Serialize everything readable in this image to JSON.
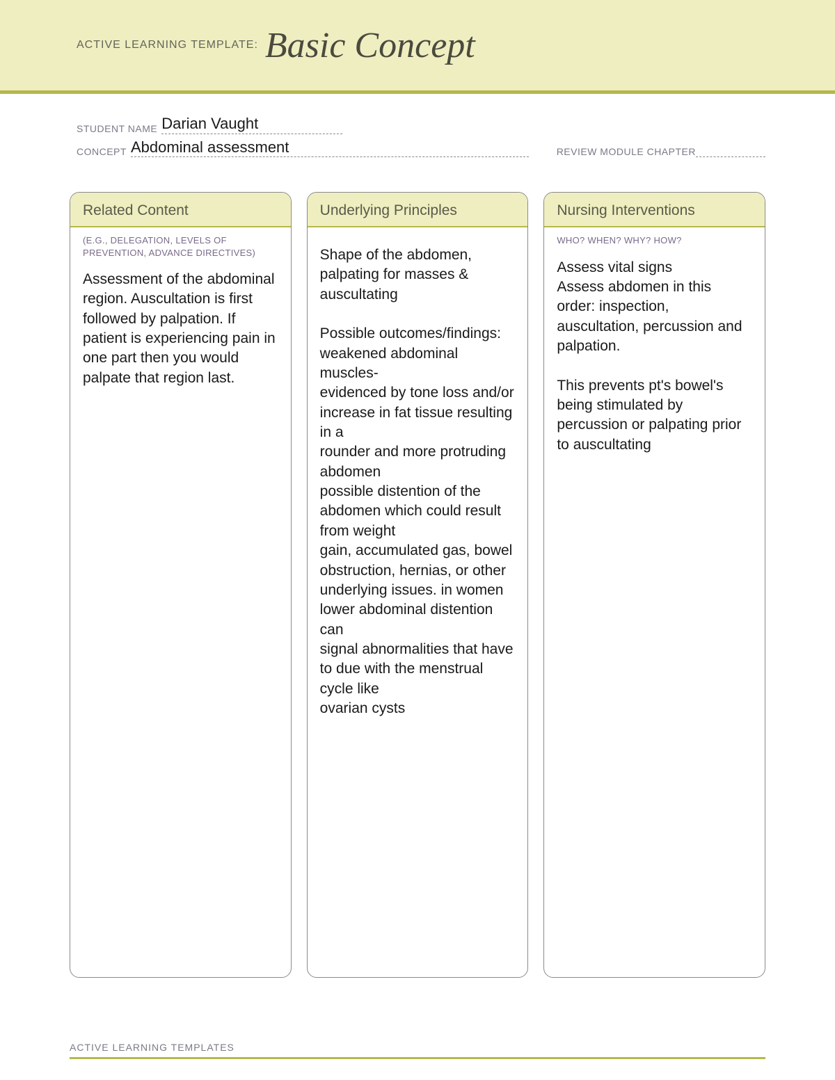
{
  "header": {
    "prefix": "ACTIVE LEARNING TEMPLATE:",
    "title": "Basic Concept",
    "band_color": "#efeec0",
    "rule_color": "#b5b84a"
  },
  "meta": {
    "student_name_label": "STUDENT NAME",
    "student_name_value": "Darian Vaught",
    "concept_label": "CONCEPT",
    "concept_value": "Abdominal assessment",
    "review_label": "REVIEW MODULE CHAPTER",
    "review_value": ""
  },
  "columns": [
    {
      "title": "Related Content",
      "sub": "(E.G., DELEGATION,\nLEVELS OF PREVENTION,\nADVANCE DIRECTIVES)",
      "body": "Assessment of the abdominal region. Auscultation is first followed by palpation. If patient is experiencing pain in one part then you would palpate that region last."
    },
    {
      "title": "Underlying Principles",
      "sub": "",
      "body": "Shape of the abdomen, palpating for masses & auscultating\n\nPossible outcomes/findings: weakened abdominal muscles-\nevidenced by tone loss and/or increase in fat tissue resulting in a\nrounder and more protruding abdomen\npossible distention of the abdomen which could result from weight\ngain, accumulated gas, bowel obstruction, hernias, or other underlying issues. in women lower abdominal distention can\nsignal abnormalities that have to due with the menstrual cycle like\novarian cysts"
    },
    {
      "title": "Nursing Interventions",
      "sub": "WHO? WHEN? WHY? HOW?",
      "body": "Assess vital signs\nAssess abdomen in this order: inspection, auscultation, percussion and palpation.\n\nThis prevents pt's bowel's being stimulated by percussion or palpating prior to auscultating"
    }
  ],
  "footer": {
    "text": "ACTIVE LEARNING TEMPLATES"
  },
  "style": {
    "column_border_color": "#8a8a8a",
    "column_header_bg": "#efeec0",
    "column_header_rule": "#b5b84a",
    "body_font_size": 21,
    "title_font_size": 52
  }
}
